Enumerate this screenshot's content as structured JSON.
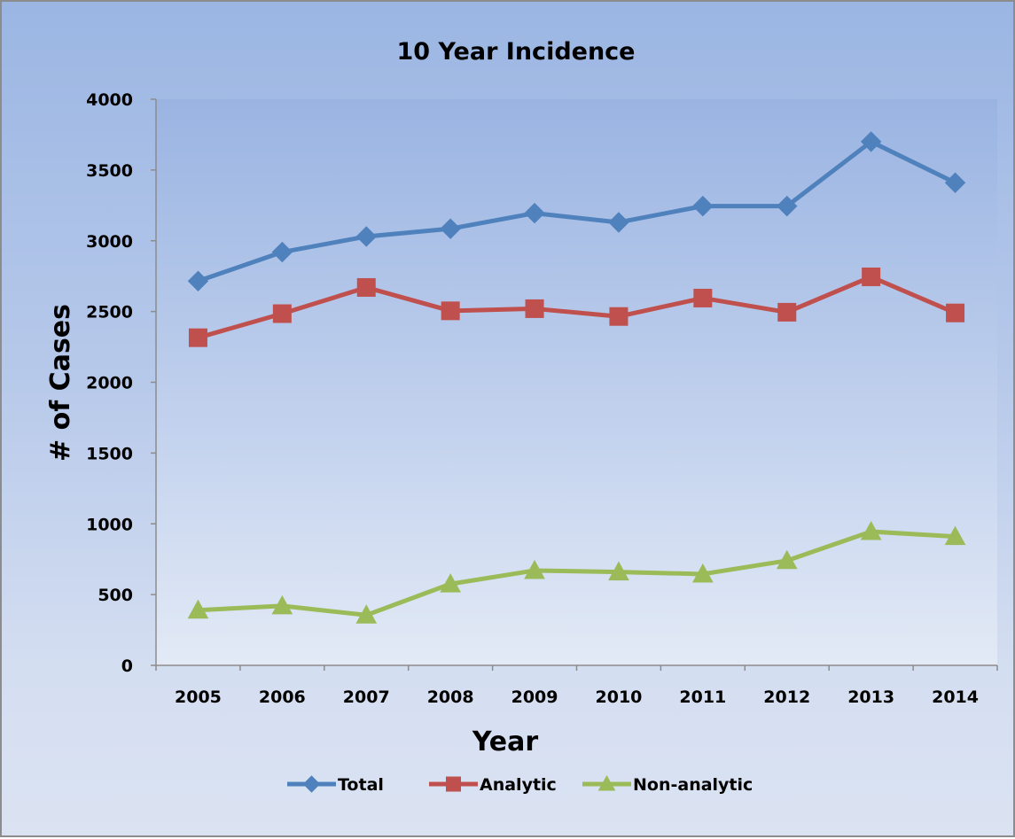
{
  "chart_data": {
    "type": "line",
    "title": "10 Year Incidence",
    "xlabel": "Year",
    "ylabel": "# of Cases",
    "categories": [
      "2005",
      "2006",
      "2007",
      "2008",
      "2009",
      "2010",
      "2011",
      "2012",
      "2013",
      "2014"
    ],
    "ylim": [
      0,
      4000
    ],
    "yticks": [
      "0",
      "500",
      "1000",
      "1500",
      "2000",
      "2500",
      "3000",
      "3500",
      "4000"
    ],
    "grid": false,
    "legend_position": "bottom",
    "series": [
      {
        "name": "Total",
        "color": "#4f81bd",
        "marker": "diamond",
        "values": [
          2715,
          2920,
          3030,
          3085,
          3195,
          3130,
          3245,
          3245,
          3700,
          3410
        ]
      },
      {
        "name": "Analytic",
        "color": "#c0504d",
        "marker": "square",
        "values": [
          2315,
          2485,
          2670,
          2505,
          2520,
          2465,
          2595,
          2495,
          2745,
          2490
        ]
      },
      {
        "name": "Non-analytic",
        "color": "#9bbb59",
        "marker": "triangle",
        "values": [
          390,
          420,
          355,
          575,
          670,
          660,
          645,
          740,
          945,
          910
        ]
      }
    ]
  }
}
